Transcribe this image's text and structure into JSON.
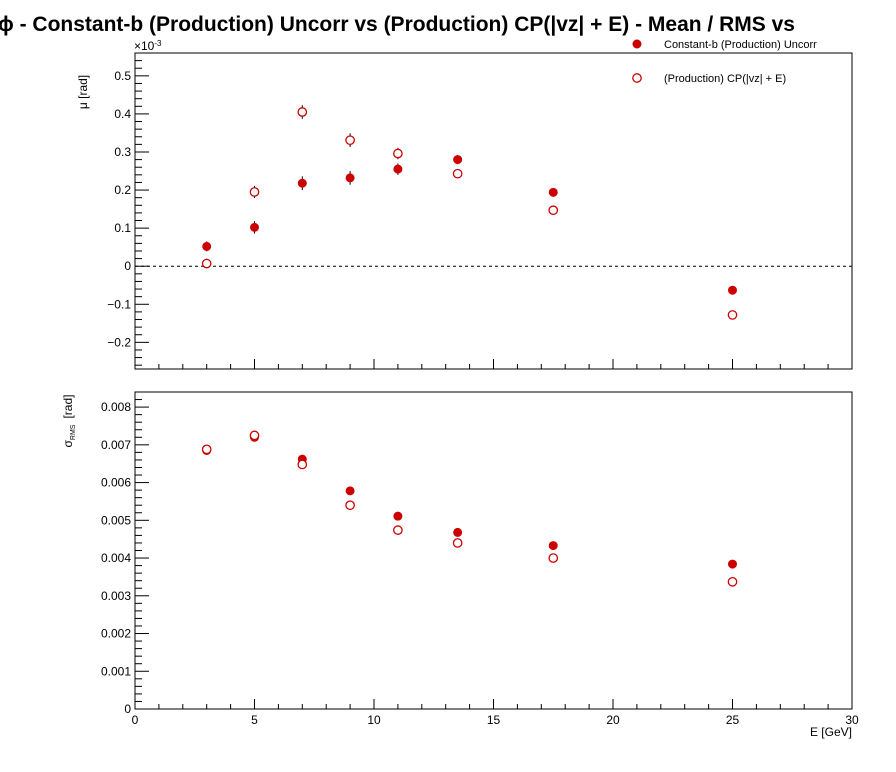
{
  "chart_data": [
    {
      "type": "scatter",
      "panel": "mean",
      "title": "ϕ  -  Constant-b (Production) Uncorr vs (Production) CP(|vz| + E)  -  Mean / RMS vs",
      "xlabel": "",
      "ylabel": "μ  [rad]",
      "y_multiplier": "×10",
      "y_multiplier_exp": "-3",
      "xlim": [
        0,
        30
      ],
      "ylim": [
        -0.27,
        0.56
      ],
      "x_ticks": [
        0,
        5,
        10,
        15,
        20,
        25,
        30
      ],
      "x_tick_labels": [
        "",
        "",
        "",
        "",
        "",
        "",
        ""
      ],
      "y_ticks": [
        -0.2,
        -0.1,
        0,
        0.1,
        0.2,
        0.3,
        0.4,
        0.5
      ],
      "y_tick_labels": [
        "−0.2",
        "−0.1",
        "0",
        "0.1",
        "0.2",
        "0.3",
        "0.4",
        "0.5"
      ],
      "zero_line": true,
      "legend_position": "top-right",
      "series": [
        {
          "name": "Constant-b (Production) Uncorr",
          "marker": "filled-circle",
          "color": "#cc0000",
          "x": [
            3,
            5,
            7,
            9,
            11,
            13.5,
            17.5,
            25
          ],
          "y": [
            0.052,
            0.102,
            0.218,
            0.232,
            0.255,
            0.28,
            0.194,
            -0.063
          ],
          "err": [
            0.013,
            0.016,
            0.018,
            0.018,
            0.015,
            0.012,
            0.009,
            0.007
          ]
        },
        {
          "name": "(Production) CP(|vz| + E)",
          "marker": "open-circle",
          "color": "#cc0000",
          "x": [
            3,
            5,
            7,
            9,
            11,
            13.5,
            17.5,
            25
          ],
          "y": [
            0.007,
            0.195,
            0.405,
            0.331,
            0.296,
            0.243,
            0.147,
            -0.128
          ],
          "err": [
            0.013,
            0.016,
            0.018,
            0.018,
            0.015,
            0.012,
            0.009,
            0.007
          ]
        }
      ]
    },
    {
      "type": "scatter",
      "panel": "rms",
      "xlabel": "E  [GeV]",
      "ylabel": "σ",
      "ylabel_sub": "RMS",
      "ylabel_unit": "[rad]",
      "xlim": [
        0,
        30
      ],
      "ylim": [
        0,
        0.0084
      ],
      "x_ticks": [
        0,
        5,
        10,
        15,
        20,
        25,
        30
      ],
      "x_tick_labels": [
        "0",
        "5",
        "10",
        "15",
        "20",
        "25",
        "30"
      ],
      "y_ticks": [
        0,
        0.001,
        0.002,
        0.003,
        0.004,
        0.005,
        0.006,
        0.007,
        0.008
      ],
      "y_tick_labels": [
        "0",
        "0.001",
        "0.002",
        "0.003",
        "0.004",
        "0.005",
        "0.006",
        "0.007",
        "0.008"
      ],
      "series": [
        {
          "name": "Constant-b (Production) Uncorr",
          "marker": "filled-circle",
          "color": "#cc0000",
          "x": [
            3,
            5,
            7,
            9,
            11,
            13.5,
            17.5,
            25
          ],
          "y": [
            0.00685,
            0.0072,
            0.00662,
            0.00578,
            0.00511,
            0.00468,
            0.00433,
            0.00384
          ]
        },
        {
          "name": "(Production) CP(|vz| + E)",
          "marker": "open-circle",
          "color": "#cc0000",
          "x": [
            3,
            5,
            7,
            9,
            11,
            13.5,
            17.5,
            25
          ],
          "y": [
            0.00688,
            0.00725,
            0.00648,
            0.0054,
            0.00474,
            0.0044,
            0.004,
            0.00337
          ]
        }
      ]
    }
  ]
}
